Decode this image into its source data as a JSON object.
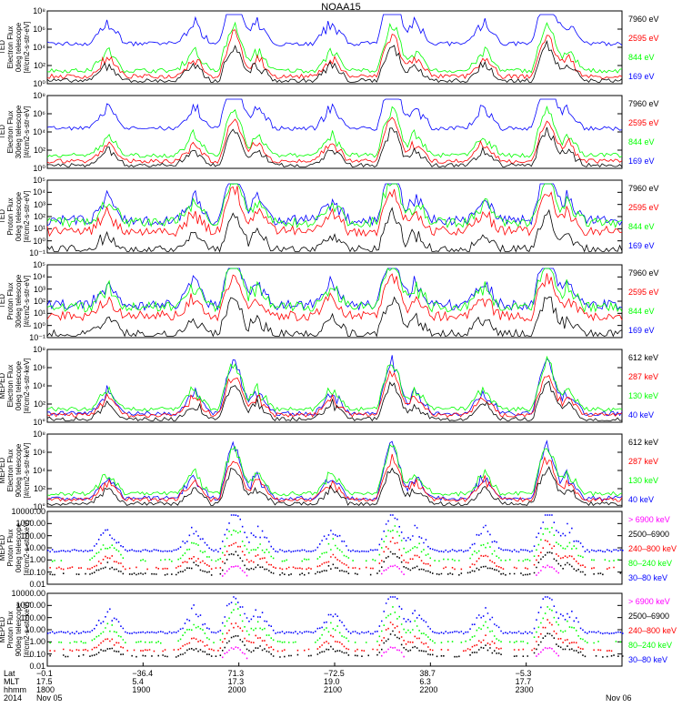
{
  "title": "NOAA15",
  "colors": {
    "blue": "#0000ff",
    "red": "#ff0000",
    "green": "#00ff00",
    "black": "#000000",
    "magenta": "#ff00ff"
  },
  "chart_data": [
    {
      "type": "line",
      "panel": "TED electron 0deg",
      "ylabel": [
        "TED",
        "Electron Flux",
        "0deg telescope",
        "[#/cm2-s-str-eV]"
      ],
      "yscale": "log",
      "yticks": [
        "10⁰",
        "10²",
        "10⁴",
        "10⁶",
        "10⁸"
      ],
      "legend": [
        {
          "text": "7960 eV",
          "color": "#000000"
        },
        {
          "text": "2595 eV",
          "color": "#ff0000"
        },
        {
          "text": "844 eV",
          "color": "#00ff00"
        },
        {
          "text": "169 eV",
          "color": "#0000ff"
        }
      ]
    },
    {
      "type": "line",
      "panel": "TED electron 30deg",
      "ylabel": [
        "TED",
        "Electron Flux",
        "30deg telescope",
        "[#/cm2-s-str-eV]"
      ],
      "yscale": "log",
      "yticks": [
        "10⁰",
        "10²",
        "10⁴",
        "10⁶",
        "10⁸"
      ],
      "legend": [
        {
          "text": "7960 eV",
          "color": "#000000"
        },
        {
          "text": "2595 eV",
          "color": "#ff0000"
        },
        {
          "text": "844 eV",
          "color": "#00ff00"
        },
        {
          "text": "169 eV",
          "color": "#0000ff"
        }
      ]
    },
    {
      "type": "line",
      "panel": "TED proton 0deg",
      "ylabel": [
        "TED",
        "Proton Flux",
        "0deg telescope",
        "[#/cm2-s-str-eV]"
      ],
      "yscale": "log",
      "yticks": [
        "10⁻¹",
        "10⁰",
        "10¹",
        "10²",
        "10³",
        "10⁴",
        "10⁵"
      ],
      "legend": [
        {
          "text": "7960 eV",
          "color": "#000000"
        },
        {
          "text": "2595 eV",
          "color": "#ff0000"
        },
        {
          "text": "844 eV",
          "color": "#00ff00"
        },
        {
          "text": "169 eV",
          "color": "#0000ff"
        }
      ]
    },
    {
      "type": "line",
      "panel": "TED proton 30deg",
      "ylabel": [
        "TED",
        "Proton Flux",
        "30deg telescope",
        "[#/cm2-s-str-eV]"
      ],
      "yscale": "log",
      "yticks": [
        "10⁻¹",
        "10⁰",
        "10¹",
        "10²",
        "10³",
        "10⁴",
        "10⁵"
      ],
      "legend": [
        {
          "text": "7960 eV",
          "color": "#000000"
        },
        {
          "text": "2595 eV",
          "color": "#ff0000"
        },
        {
          "text": "844 eV",
          "color": "#00ff00"
        },
        {
          "text": "169 eV",
          "color": "#0000ff"
        }
      ]
    },
    {
      "type": "line",
      "panel": "MEPED electron 0deg",
      "ylabel": [
        "MEPED",
        "Electron Flux",
        "0deg telescope",
        "[#/cm2-s-str-keV]"
      ],
      "yscale": "log",
      "yticks": [
        "10°",
        "10²",
        "10⁴",
        "10⁶",
        "10⁸"
      ],
      "legend": [
        {
          "text": "612 keV",
          "color": "#000000"
        },
        {
          "text": "287 keV",
          "color": "#ff0000"
        },
        {
          "text": "130 keV",
          "color": "#00ff00"
        },
        {
          "text": "40 keV",
          "color": "#0000ff"
        }
      ]
    },
    {
      "type": "line",
      "panel": "MEPED electron 90deg",
      "ylabel": [
        "MEPED",
        "Electron Flux",
        "90deg telescope",
        "[#/cm2-s-str-keV]"
      ],
      "yscale": "log",
      "yticks": [
        "10°",
        "10²",
        "10⁴",
        "10⁶",
        "10⁸"
      ],
      "legend": [
        {
          "text": "612 keV",
          "color": "#000000"
        },
        {
          "text": "287 keV",
          "color": "#ff0000"
        },
        {
          "text": "130 keV",
          "color": "#00ff00"
        },
        {
          "text": "40 keV",
          "color": "#0000ff"
        }
      ]
    },
    {
      "type": "scatter",
      "panel": "MEPED proton 0deg",
      "ylabel": [
        "MEPED",
        "Proton Flux",
        "0deg telescope",
        "[#/cm2-s-str-keV]"
      ],
      "yscale": "log",
      "yticks": [
        "0.01",
        "0.10",
        "1.00",
        "10.00",
        "100.00",
        "1000.00",
        "10000.00"
      ],
      "legend": [
        {
          "text": "> 6900 keV",
          "color": "#ff00ff"
        },
        {
          "text": "2500–6900",
          "color": "#000000"
        },
        {
          "text": "240–800 keV",
          "color": "#ff0000"
        },
        {
          "text": "80–240 keV",
          "color": "#00ff00"
        },
        {
          "text": "30–80 keV",
          "color": "#0000ff"
        }
      ]
    },
    {
      "type": "scatter",
      "panel": "MEPED proton 90deg",
      "ylabel": [
        "MEPED",
        "Proton Flux",
        "90deg telescope",
        "[#/cm2-s-str-keV]"
      ],
      "yscale": "log",
      "yticks": [
        "0.01",
        "0.10",
        "1.00",
        "10.00",
        "100.00",
        "1000.00",
        "10000.00"
      ],
      "legend": [
        {
          "text": "> 6900 keV",
          "color": "#ff00ff"
        },
        {
          "text": "2500–6900",
          "color": "#000000"
        },
        {
          "text": "240–800 keV",
          "color": "#ff0000"
        },
        {
          "text": "80–240 keV",
          "color": "#00ff00"
        },
        {
          "text": "30–80 keV",
          "color": "#0000ff"
        }
      ]
    }
  ],
  "xaxis": {
    "row_labels": [
      "Lat",
      "MLT",
      "hhmm",
      "2014"
    ],
    "columns": [
      {
        "lat": "−0.1",
        "mlt": "17.5",
        "hhmm": "1800",
        "date": "Nov 05"
      },
      {
        "lat": "−36.4",
        "mlt": "5.4",
        "hhmm": "1900",
        "date": ""
      },
      {
        "lat": "71.3",
        "mlt": "17.3",
        "hhmm": "2000",
        "date": ""
      },
      {
        "lat": "−72.5",
        "mlt": "19.0",
        "hhmm": "2100",
        "date": ""
      },
      {
        "lat": "38.7",
        "mlt": "6.3",
        "hhmm": "2200",
        "date": ""
      },
      {
        "lat": "−5.3",
        "mlt": "17.7",
        "hhmm": "2300",
        "date": ""
      },
      {
        "lat": "",
        "mlt": "",
        "hhmm": "",
        "date": "Nov 06"
      }
    ]
  },
  "passes": [
    {
      "x": 0.105,
      "type": "aurora"
    },
    {
      "x": 0.255,
      "type": "aurora"
    },
    {
      "x": 0.325,
      "type": "polar"
    },
    {
      "x": 0.365,
      "type": "aurora"
    },
    {
      "x": 0.495,
      "type": "aurora"
    },
    {
      "x": 0.6,
      "type": "polar"
    },
    {
      "x": 0.64,
      "type": "aurora"
    },
    {
      "x": 0.76,
      "type": "aurora"
    },
    {
      "x": 0.87,
      "type": "polar"
    },
    {
      "x": 0.905,
      "type": "aurora"
    }
  ]
}
